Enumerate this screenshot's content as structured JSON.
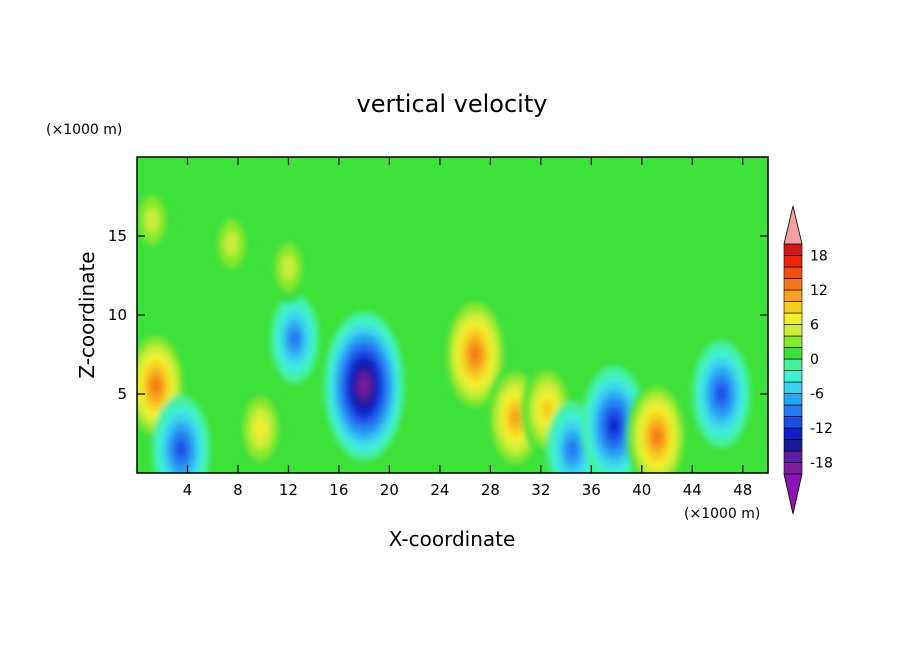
{
  "chart_data": {
    "type": "heatmap",
    "title": "vertical velocity",
    "xlabel": "X-coordinate",
    "ylabel": "Z-coordinate",
    "x_unit": "(×1000 m)",
    "y_unit": "(×1000 m)",
    "xlim": [
      0,
      50
    ],
    "ylim": [
      0,
      20
    ],
    "x_ticks": [
      4,
      8,
      12,
      16,
      20,
      24,
      28,
      32,
      36,
      40,
      44,
      48
    ],
    "y_ticks": [
      5,
      10,
      15
    ],
    "colorbar": {
      "levels": [
        -20,
        -18,
        -16,
        -14,
        -12,
        -10,
        -8,
        -6,
        -4,
        -2,
        0,
        2,
        4,
        6,
        8,
        10,
        12,
        14,
        16,
        18,
        20
      ],
      "labels": [
        18,
        12,
        6,
        0,
        -6,
        -12,
        -18
      ],
      "colors": [
        "#7a1ea0",
        "#5a1ea0",
        "#1c1a9a",
        "#1020c8",
        "#1a4ee6",
        "#2878f0",
        "#2aa6f0",
        "#3cd2f0",
        "#40f0d0",
        "#44f09a",
        "#3ee03a",
        "#88e82e",
        "#cfee3a",
        "#f2ee2e",
        "#f5cc20",
        "#f7a21c",
        "#f57818",
        "#f25012",
        "#ea2410",
        "#d01818"
      ],
      "extend_low_color": "#8c14b4",
      "extend_high_color": "#f4a0a0"
    },
    "features": [
      {
        "x": 1.5,
        "z": 5.5,
        "value": 13
      },
      {
        "x": 3.5,
        "z": 1.5,
        "value": -12
      },
      {
        "x": 9.8,
        "z": 2.8,
        "value": 8
      },
      {
        "x": 12.5,
        "z": 8.5,
        "value": -9
      },
      {
        "x": 18.0,
        "z": 5.5,
        "value": -19
      },
      {
        "x": 26.8,
        "z": 7.5,
        "value": 14
      },
      {
        "x": 30.0,
        "z": 3.5,
        "value": 12
      },
      {
        "x": 32.5,
        "z": 4.0,
        "value": 10
      },
      {
        "x": 34.5,
        "z": 1.5,
        "value": -10
      },
      {
        "x": 37.8,
        "z": 3.0,
        "value": -14
      },
      {
        "x": 41.2,
        "z": 2.3,
        "value": 13
      },
      {
        "x": 46.3,
        "z": 5.0,
        "value": -12
      },
      {
        "x": 1.2,
        "z": 16.0,
        "value": 6
      },
      {
        "x": 7.5,
        "z": 14.5,
        "value": 6
      },
      {
        "x": 12.0,
        "z": 13.0,
        "value": 6
      }
    ]
  }
}
